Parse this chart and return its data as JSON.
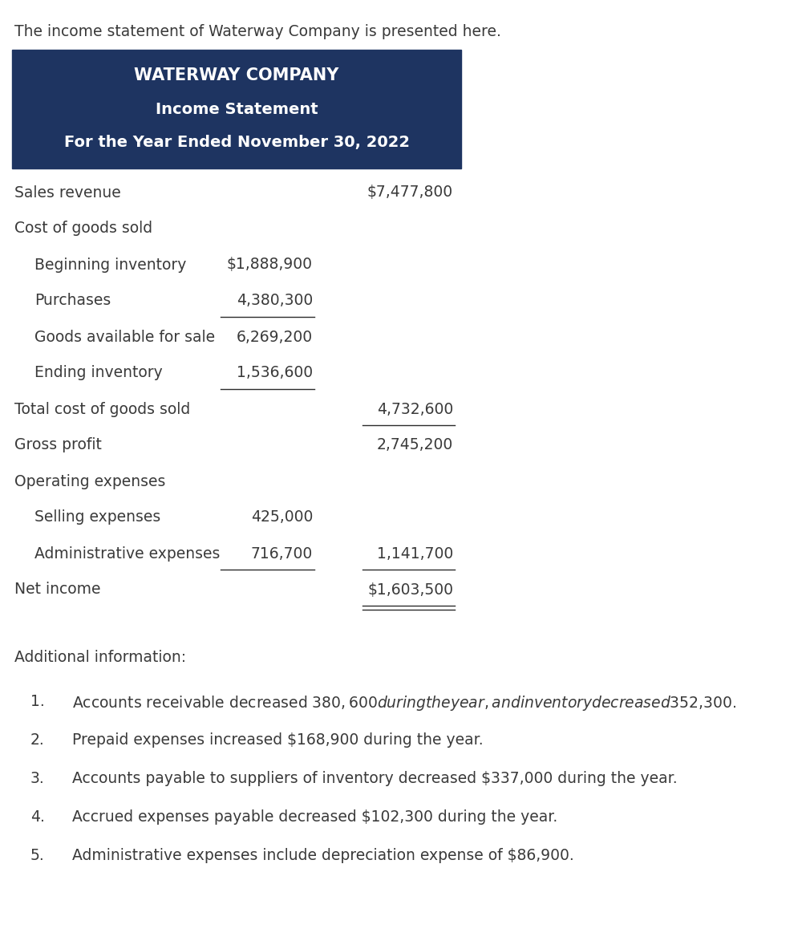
{
  "intro_text": "The income statement of Waterway Company is presented here.",
  "header_bg_color": "#1e3461",
  "header_text_color": "#ffffff",
  "header_line1": "WATERWAY COMPANY",
  "header_line2": "Income Statement",
  "header_line3": "For the Year Ended November 30, 2022",
  "body_text_color": "#3a3a3a",
  "bg_color": "#ffffff",
  "rows": [
    {
      "label": "Sales revenue",
      "indent": 0,
      "col1": "",
      "col2": "$7,477,800",
      "ul1": false,
      "ul2": false,
      "dul2": false
    },
    {
      "label": "Cost of goods sold",
      "indent": 0,
      "col1": "",
      "col2": "",
      "ul1": false,
      "ul2": false,
      "dul2": false
    },
    {
      "label": "Beginning inventory",
      "indent": 1,
      "col1": "$1,888,900",
      "col2": "",
      "ul1": false,
      "ul2": false,
      "dul2": false
    },
    {
      "label": "Purchases",
      "indent": 1,
      "col1": "4,380,300",
      "col2": "",
      "ul1": true,
      "ul2": false,
      "dul2": false
    },
    {
      "label": "Goods available for sale",
      "indent": 1,
      "col1": "6,269,200",
      "col2": "",
      "ul1": false,
      "ul2": false,
      "dul2": false
    },
    {
      "label": "Ending inventory",
      "indent": 1,
      "col1": "1,536,600",
      "col2": "",
      "ul1": true,
      "ul2": false,
      "dul2": false
    },
    {
      "label": "Total cost of goods sold",
      "indent": 0,
      "col1": "",
      "col2": "4,732,600",
      "ul1": false,
      "ul2": true,
      "dul2": false
    },
    {
      "label": "Gross profit",
      "indent": 0,
      "col1": "",
      "col2": "2,745,200",
      "ul1": false,
      "ul2": false,
      "dul2": false
    },
    {
      "label": "Operating expenses",
      "indent": 0,
      "col1": "",
      "col2": "",
      "ul1": false,
      "ul2": false,
      "dul2": false
    },
    {
      "label": "Selling expenses",
      "indent": 1,
      "col1": "425,000",
      "col2": "",
      "ul1": false,
      "ul2": false,
      "dul2": false
    },
    {
      "label": "Administrative expenses",
      "indent": 1,
      "col1": "716,700",
      "col2": "1,141,700",
      "ul1": true,
      "ul2": true,
      "dul2": false
    },
    {
      "label": "Net income",
      "indent": 0,
      "col1": "",
      "col2": "$1,603,500",
      "ul1": false,
      "ul2": false,
      "dul2": true
    }
  ],
  "additional_info_title": "Additional information:",
  "additional_info": [
    "Accounts receivable decreased $380,600 during the year, and inventory decreased $352,300.",
    "Prepaid expenses increased $168,900 during the year.",
    "Accounts payable to suppliers of inventory decreased $337,000 during the year.",
    "Accrued expenses payable decreased $102,300 during the year.",
    "Administrative expenses include depreciation expense of $86,900."
  ]
}
